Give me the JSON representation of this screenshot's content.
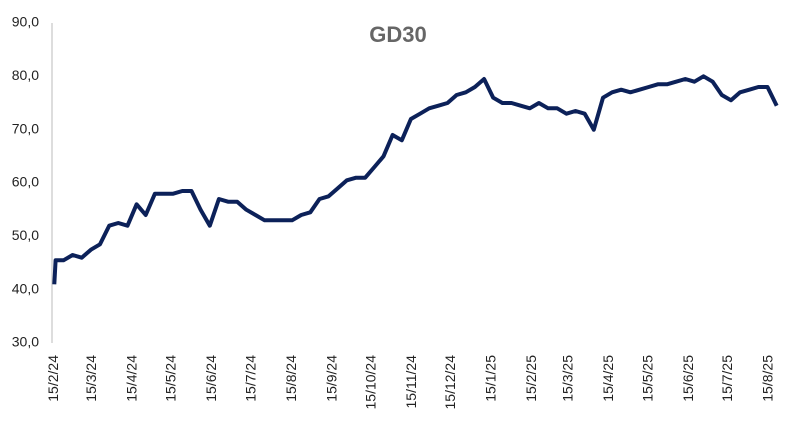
{
  "chart_data": {
    "type": "line",
    "title": "GD30",
    "x": [
      "15/2/24",
      "16/2/24",
      "22/2/24",
      "29/2/24",
      "7/3/24",
      "14/3/24",
      "21/3/24",
      "28/3/24",
      "4/4/24",
      "11/4/24",
      "18/4/24",
      "25/4/24",
      "2/5/24",
      "9/5/24",
      "16/5/24",
      "23/5/24",
      "30/5/24",
      "6/6/24",
      "13/6/24",
      "20/6/24",
      "27/6/24",
      "4/7/24",
      "11/7/24",
      "18/7/24",
      "25/7/24",
      "1/8/24",
      "8/8/24",
      "15/8/24",
      "22/8/24",
      "29/8/24",
      "5/9/24",
      "12/9/24",
      "19/9/24",
      "26/9/24",
      "3/10/24",
      "10/10/24",
      "17/10/24",
      "24/10/24",
      "31/10/24",
      "7/11/24",
      "14/11/24",
      "21/11/24",
      "28/11/24",
      "5/12/24",
      "12/12/24",
      "19/12/24",
      "26/12/24",
      "2/1/25",
      "9/1/25",
      "16/1/25",
      "23/1/25",
      "30/1/25",
      "6/2/25",
      "13/2/25",
      "20/2/25",
      "27/2/25",
      "6/3/25",
      "13/3/25",
      "20/3/25",
      "27/3/25",
      "3/4/25",
      "10/4/25",
      "17/4/25",
      "24/4/25",
      "1/5/25",
      "8/5/25",
      "15/5/25",
      "22/5/25",
      "29/5/25",
      "5/6/25",
      "12/6/25",
      "19/6/25",
      "26/6/25",
      "3/7/25",
      "10/7/25",
      "17/7/25",
      "24/7/25",
      "31/7/25",
      "7/8/25",
      "14/8/25",
      "21/8/25"
    ],
    "series": [
      {
        "name": "GD30",
        "color": "#0c2159",
        "values": [
          41,
          45.5,
          45.5,
          46.5,
          46,
          47.5,
          48.5,
          52,
          52.5,
          52,
          56,
          54,
          58,
          58,
          58,
          58.5,
          58.5,
          55,
          52,
          57,
          56.5,
          56.5,
          55,
          54,
          53,
          53,
          53,
          53,
          54,
          54.5,
          57,
          57.5,
          59,
          60.5,
          61,
          61,
          63,
          65,
          69,
          68,
          72,
          73,
          74,
          74.5,
          75,
          76.5,
          77,
          78,
          79.5,
          76,
          75,
          75,
          74.5,
          74,
          75,
          74,
          74,
          73,
          73.5,
          73,
          70,
          76,
          77,
          77.5,
          77,
          77.5,
          78,
          78.5,
          78.5,
          79,
          79.5,
          79,
          80,
          79,
          76.5,
          75.5,
          77,
          77.5,
          78,
          78,
          74.5
        ]
      }
    ],
    "xlim": [
      "14/2/24",
      "22/8/25"
    ],
    "xticks": [
      "15/2/24",
      "15/3/24",
      "15/4/24",
      "15/5/24",
      "15/6/24",
      "15/7/24",
      "15/8/24",
      "15/9/24",
      "15/10/24",
      "15/11/24",
      "15/12/24",
      "15/1/25",
      "15/2/25",
      "15/3/25",
      "15/4/25",
      "15/5/25",
      "15/6/25",
      "15/7/25",
      "15/8/25"
    ],
    "ylim": [
      30,
      90
    ],
    "yticks": [
      {
        "value": 30,
        "label": "30,0"
      },
      {
        "value": 40,
        "label": "40,0"
      },
      {
        "value": 50,
        "label": "50,0"
      },
      {
        "value": 60,
        "label": "60,0"
      },
      {
        "value": 70,
        "label": "70,0"
      },
      {
        "value": 80,
        "label": "80,0"
      },
      {
        "value": 90,
        "label": "90,0"
      }
    ],
    "grid": false
  }
}
